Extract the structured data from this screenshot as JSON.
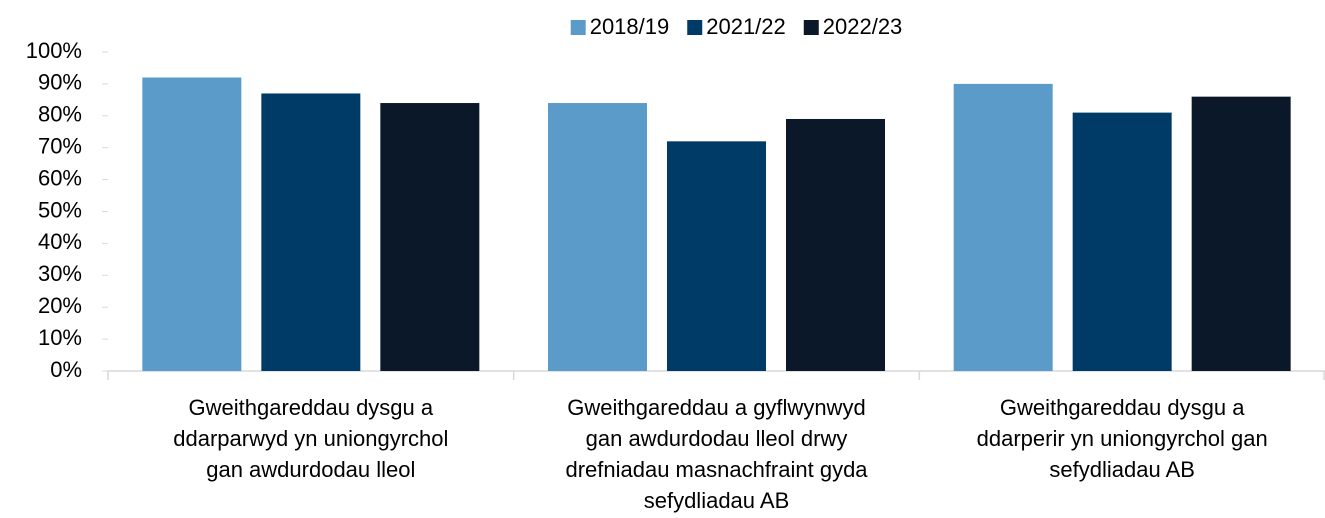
{
  "chart_data": {
    "type": "bar",
    "categories": [
      [
        "Gweithgareddau dysgu a",
        "ddarparwyd yn uniongyrchol",
        "gan awdurdodau lleol"
      ],
      [
        "Gweithgareddau a gyflwynwyd",
        "gan awdurdodau lleol drwy",
        "drefniadau masnachfraint gyda",
        "sefydliadau AB"
      ],
      [
        "Gweithgareddau dysgu a",
        "ddarperir yn uniongyrchol gan",
        "sefydliadau AB"
      ]
    ],
    "series": [
      {
        "name": "2018/19",
        "color": "#5b9bc9",
        "values": [
          92,
          84,
          90
        ]
      },
      {
        "name": "2021/22",
        "color": "#003b68",
        "values": [
          87,
          72,
          81
        ]
      },
      {
        "name": "2022/23",
        "color": "#0b1829",
        "values": [
          84,
          79,
          86
        ]
      }
    ],
    "ylim": [
      0,
      100
    ],
    "yticks": [
      {
        "value": 0,
        "label": "0%"
      },
      {
        "value": 10,
        "label": "10%"
      },
      {
        "value": 20,
        "label": "20%"
      },
      {
        "value": 30,
        "label": "30%"
      },
      {
        "value": 40,
        "label": "40%"
      },
      {
        "value": 50,
        "label": "50%"
      },
      {
        "value": 60,
        "label": "60%"
      },
      {
        "value": 70,
        "label": "70%"
      },
      {
        "value": 80,
        "label": "80%"
      },
      {
        "value": 90,
        "label": "90%"
      },
      {
        "value": 100,
        "label": "100%"
      }
    ],
    "grid": false,
    "legend": "top"
  }
}
